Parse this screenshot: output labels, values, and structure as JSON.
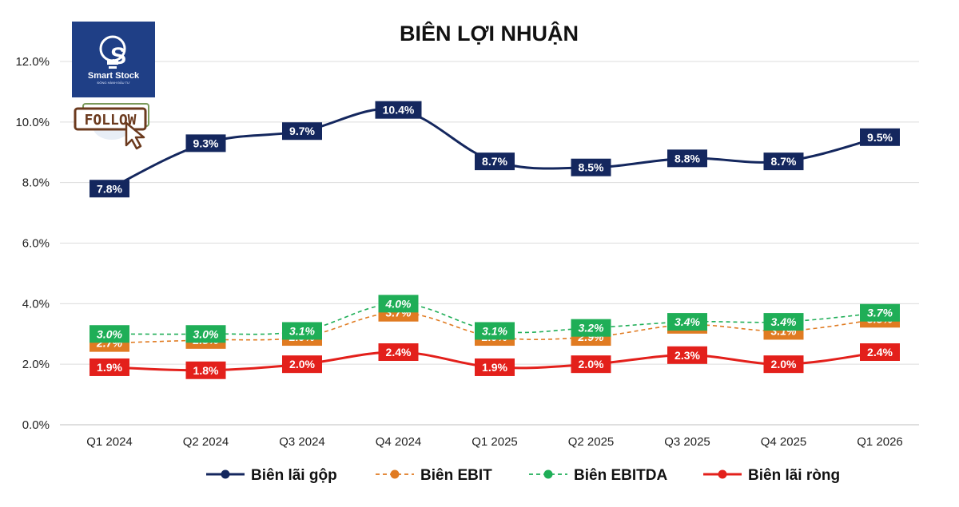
{
  "chart_data": {
    "type": "line",
    "title": "BIÊN LỢI NHUẬN",
    "categories": [
      "Q1 2024",
      "Q2 2024",
      "Q3 2024",
      "Q4 2024",
      "Q1 2025",
      "Q2 2025",
      "Q3 2025",
      "Q4 2025",
      "Q1 2026"
    ],
    "ylim": [
      0,
      12
    ],
    "yticks": [
      "0.0%",
      "2.0%",
      "4.0%",
      "6.0%",
      "8.0%",
      "10.0%",
      "12.0%"
    ],
    "grid": true,
    "legend_position": "bottom",
    "series": [
      {
        "name": "Biên lãi gộp",
        "color": "#14275e",
        "style": "solid",
        "values": [
          7.8,
          9.3,
          9.7,
          10.4,
          8.7,
          8.5,
          8.8,
          8.7,
          9.5
        ],
        "labels": [
          "7.8%",
          "9.3%",
          "9.7%",
          "10.4%",
          "8.7%",
          "8.5%",
          "8.8%",
          "8.7%",
          "9.5%"
        ],
        "label_color": "#14275e",
        "label_italic": false
      },
      {
        "name": "Biên EBIT",
        "color": "#e07b22",
        "style": "dashed",
        "values": [
          2.7,
          2.8,
          2.9,
          3.7,
          2.9,
          2.9,
          3.3,
          3.1,
          3.5
        ],
        "labels": [
          "2.7%",
          "2.8%",
          "2.9%",
          "3.7%",
          "2.9%",
          "2.9%",
          "3.3%",
          "3.1%",
          "3.5%"
        ],
        "label_color": "#e07b22",
        "label_italic": true
      },
      {
        "name": "Biên EBITDA",
        "color": "#1fae57",
        "style": "dashed",
        "values": [
          3.0,
          3.0,
          3.1,
          4.0,
          3.1,
          3.2,
          3.4,
          3.4,
          3.7
        ],
        "labels": [
          "3.0%",
          "3.0%",
          "3.1%",
          "4.0%",
          "3.1%",
          "3.2%",
          "3.4%",
          "3.4%",
          "3.7%"
        ],
        "label_color": "#1fae57",
        "label_italic": true
      },
      {
        "name": "Biên lãi ròng",
        "color": "#e3201b",
        "style": "solid",
        "values": [
          1.9,
          1.8,
          2.0,
          2.4,
          1.9,
          2.0,
          2.3,
          2.0,
          2.4
        ],
        "labels": [
          "1.9%",
          "1.8%",
          "2.0%",
          "2.4%",
          "1.9%",
          "2.0%",
          "2.3%",
          "2.0%",
          "2.4%"
        ],
        "label_color": "#e3201b",
        "label_italic": false
      }
    ]
  },
  "logo": {
    "name": "Smart Stock",
    "tagline": "ĐỒNG HÀNH ĐẦU TƯ",
    "letter": "S",
    "bg": "#1f3f86"
  },
  "follow_badge": {
    "label": "FOLLOW"
  }
}
